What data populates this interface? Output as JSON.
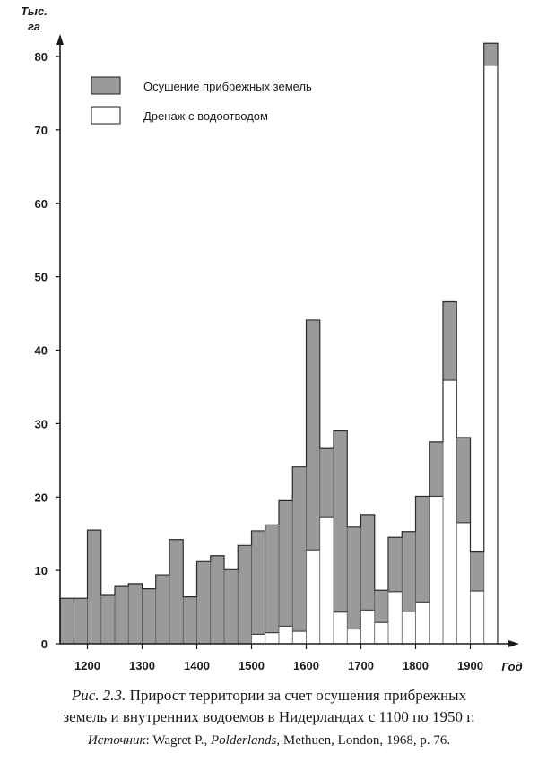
{
  "chart_data": {
    "type": "bar",
    "y_unit_line1": "Тыс.",
    "y_unit_line2": "га",
    "x_unit": "Год",
    "xlim": [
      1150,
      1950
    ],
    "ylim": [
      0,
      82
    ],
    "x_ticks": [
      1200,
      1300,
      1400,
      1500,
      1600,
      1700,
      1800,
      1900
    ],
    "y_ticks": [
      0,
      10,
      20,
      30,
      40,
      50,
      60,
      70,
      80
    ],
    "grid": false,
    "legend_position": "top-left",
    "series": [
      {
        "name": "Осушение прибрежных земель",
        "color": "#9a9a9a"
      },
      {
        "name": "Дренаж с водоотводом",
        "color": "#ffffff"
      }
    ],
    "bins": [
      {
        "start": 1150,
        "end": 1175,
        "total": 6.2,
        "drainage": 0
      },
      {
        "start": 1175,
        "end": 1200,
        "total": 6.2,
        "drainage": 0
      },
      {
        "start": 1200,
        "end": 1225,
        "total": 15.5,
        "drainage": 0
      },
      {
        "start": 1225,
        "end": 1250,
        "total": 6.6,
        "drainage": 0
      },
      {
        "start": 1250,
        "end": 1275,
        "total": 7.8,
        "drainage": 0
      },
      {
        "start": 1275,
        "end": 1300,
        "total": 8.2,
        "drainage": 0
      },
      {
        "start": 1300,
        "end": 1325,
        "total": 7.5,
        "drainage": 0
      },
      {
        "start": 1325,
        "end": 1350,
        "total": 9.4,
        "drainage": 0
      },
      {
        "start": 1350,
        "end": 1375,
        "total": 14.2,
        "drainage": 0
      },
      {
        "start": 1375,
        "end": 1400,
        "total": 6.4,
        "drainage": 0
      },
      {
        "start": 1400,
        "end": 1425,
        "total": 11.2,
        "drainage": 0
      },
      {
        "start": 1425,
        "end": 1450,
        "total": 12.0,
        "drainage": 0
      },
      {
        "start": 1450,
        "end": 1475,
        "total": 10.1,
        "drainage": 0
      },
      {
        "start": 1475,
        "end": 1500,
        "total": 13.4,
        "drainage": 0
      },
      {
        "start": 1500,
        "end": 1525,
        "total": 15.4,
        "drainage": 1.3
      },
      {
        "start": 1525,
        "end": 1550,
        "total": 16.2,
        "drainage": 1.5
      },
      {
        "start": 1550,
        "end": 1575,
        "total": 19.5,
        "drainage": 2.4
      },
      {
        "start": 1575,
        "end": 1600,
        "total": 24.1,
        "drainage": 1.7
      },
      {
        "start": 1600,
        "end": 1625,
        "total": 44.1,
        "drainage": 12.8
      },
      {
        "start": 1625,
        "end": 1650,
        "total": 26.6,
        "drainage": 17.2
      },
      {
        "start": 1650,
        "end": 1675,
        "total": 29.0,
        "drainage": 4.3
      },
      {
        "start": 1675,
        "end": 1700,
        "total": 15.9,
        "drainage": 2.0
      },
      {
        "start": 1700,
        "end": 1725,
        "total": 17.6,
        "drainage": 4.6
      },
      {
        "start": 1725,
        "end": 1750,
        "total": 7.3,
        "drainage": 2.9
      },
      {
        "start": 1750,
        "end": 1775,
        "total": 14.5,
        "drainage": 7.1
      },
      {
        "start": 1775,
        "end": 1800,
        "total": 15.3,
        "drainage": 4.4
      },
      {
        "start": 1800,
        "end": 1825,
        "total": 20.1,
        "drainage": 5.7
      },
      {
        "start": 1825,
        "end": 1850,
        "total": 27.5,
        "drainage": 20.1
      },
      {
        "start": 1850,
        "end": 1875,
        "total": 46.6,
        "drainage": 35.9
      },
      {
        "start": 1875,
        "end": 1900,
        "total": 28.1,
        "drainage": 16.5
      },
      {
        "start": 1900,
        "end": 1925,
        "total": 12.5,
        "drainage": 7.2
      },
      {
        "start": 1925,
        "end": 1950,
        "total": 81.8,
        "drainage": 78.8
      }
    ]
  },
  "caption": {
    "label": "Рис. 2.3.",
    "line1_text": " Прирост территории за счет осушения прибрежных",
    "line2": "земель и внутренних водоемов в Нидерландах с 1100 по 1950 г.",
    "source_label": "Источник",
    "source_part1": ": Wagret P., ",
    "source_title": "Polderlands",
    "source_part2": ", Methuen, London, 1968, p. 76."
  }
}
